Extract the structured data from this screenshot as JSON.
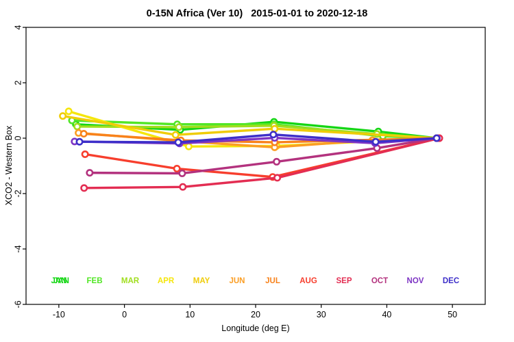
{
  "chart_data": {
    "type": "line",
    "title": "0-15N Africa (Ver 10)   2015-01-01 to 2020-12-18",
    "xlabel": "Longitude (deg E)",
    "ylabel": "XCO2 - Western Box",
    "xlim": [
      -15,
      55
    ],
    "ylim": [
      -6,
      4
    ],
    "xticks": [
      -10,
      0,
      10,
      20,
      30,
      40,
      50
    ],
    "yticks": [
      4,
      2,
      0,
      -2,
      -4,
      -6
    ],
    "grid": false,
    "legend_position": "bottom-inside",
    "marker": "open-circle-white-fill",
    "series": [
      {
        "name": "JAN",
        "color": "#15D615",
        "x": [
          -7.4,
          8.5,
          22.8,
          38.7,
          47.6
        ],
        "y": [
          0.5,
          0.3,
          0.59,
          0.24,
          0.0
        ]
      },
      {
        "name": "FEB",
        "color": "#52E626",
        "x": [
          -8.0,
          8.05,
          22.8,
          39.4,
          47.6
        ],
        "y": [
          0.64,
          0.5,
          0.5,
          0.07,
          0.0
        ]
      },
      {
        "name": "MAR",
        "color": "#A0DE1E",
        "x": [
          -7.2,
          8.3,
          22.8,
          38.5,
          47.6
        ],
        "y": [
          0.42,
          0.4,
          0.45,
          0.15,
          0.0
        ]
      },
      {
        "name": "APR",
        "color": "#F5E60B",
        "x": [
          -8.5,
          9.8,
          23.2,
          47.6
        ],
        "y": [
          0.97,
          -0.3,
          -0.28,
          0.0
        ]
      },
      {
        "name": "MAY",
        "color": "#EFCC08",
        "x": [
          -9.4,
          7.8,
          22.9,
          47.6
        ],
        "y": [
          0.8,
          0.12,
          0.34,
          0.0
        ]
      },
      {
        "name": "JUN",
        "color": "#FB9E24",
        "x": [
          -7.0,
          8.3,
          22.9,
          37.8,
          47.6
        ],
        "y": [
          0.19,
          -0.1,
          -0.33,
          -0.07,
          0.0
        ]
      },
      {
        "name": "JUL",
        "color": "#F8821B",
        "x": [
          -6.2,
          8.6,
          22.9,
          47.6
        ],
        "y": [
          0.16,
          -0.08,
          -0.15,
          0.0
        ]
      },
      {
        "name": "AUG",
        "color": "#F73E2D",
        "x": [
          -6.0,
          8.0,
          22.6,
          48.0
        ],
        "y": [
          -0.58,
          -1.1,
          -1.4,
          0.0
        ]
      },
      {
        "name": "SEP",
        "color": "#E32D52",
        "x": [
          -6.15,
          8.9,
          23.3,
          48.0
        ],
        "y": [
          -1.8,
          -1.76,
          -1.43,
          0.0
        ]
      },
      {
        "name": "OCT",
        "color": "#B3327E",
        "x": [
          -5.3,
          8.8,
          23.2,
          38.5,
          47.6
        ],
        "y": [
          -1.25,
          -1.27,
          -0.85,
          -0.36,
          0.0
        ]
      },
      {
        "name": "NOV",
        "color": "#7E35C4",
        "x": [
          -7.6,
          8.4,
          22.9,
          38.2,
          47.6
        ],
        "y": [
          -0.12,
          -0.19,
          0.01,
          -0.18,
          0.0
        ]
      },
      {
        "name": "DEC",
        "color": "#3D2FC9",
        "x": [
          -6.85,
          8.2,
          22.7,
          38.3,
          47.6
        ],
        "y": [
          -0.13,
          -0.15,
          0.13,
          -0.13,
          0.0
        ]
      }
    ]
  }
}
